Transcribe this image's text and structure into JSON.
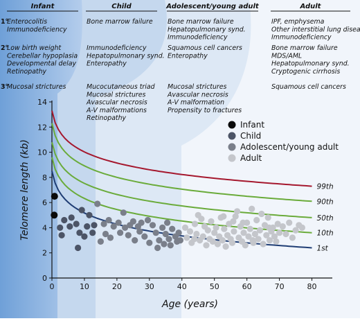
{
  "panel": {
    "columns": [
      {
        "title": "Infant",
        "rows": [
          [
            "Enterocolitis",
            "Immunodeficiency"
          ],
          [
            "Low birth weight",
            "Cerebellar hypoplasia",
            "Developmental delay",
            "Retinopathy"
          ],
          [
            "Mucosal strictures"
          ]
        ]
      },
      {
        "title": "Child",
        "rows": [
          [
            "Bone marrow failure"
          ],
          [
            "Immunodeficiency",
            "Hepatopulmonary synd.",
            "Enteropathy"
          ],
          [
            "Mucocutaneous triad",
            "Mucosal strictures",
            "Avascular necrosis",
            "A-V malformations",
            "Retinopathy"
          ]
        ]
      },
      {
        "title": "Adolescent/young adult",
        "rows": [
          [
            "Bone marrow failure",
            "Hepatopulmonary synd.",
            "Immunodeficiency"
          ],
          [
            "Squamous cell cancers",
            "Enteropathy"
          ],
          [
            "Mucosal strictures",
            "Avascular necrosis",
            "A-V malformation",
            "Propensity to fractures"
          ]
        ]
      },
      {
        "title": "Adult",
        "rows": [
          [
            "IPF, emphysema",
            "Other interstitial lung disease",
            "Immunodeficiency"
          ],
          [
            "Bone marrow failure",
            "MDS/AML",
            "Hepatopulmonary synd.",
            "Cryptogenic cirrhosis"
          ],
          [
            "Squamous cell cancers"
          ]
        ]
      }
    ],
    "rank_labels": [
      "1°",
      "2°",
      "3°"
    ]
  },
  "chart_data": {
    "type": "scatter",
    "xlabel": "Age (years)",
    "ylabel": "Telomere length (kb)",
    "xlim": [
      0,
      85
    ],
    "ylim": [
      0,
      14
    ],
    "xticks": [
      "0",
      "10",
      "20",
      "30",
      "40",
      "50",
      "60",
      "70",
      "80"
    ],
    "yticks": [
      "0",
      "2",
      "4",
      "6",
      "8",
      "10",
      "12",
      "14"
    ],
    "grid": false,
    "legend_position": "top-right",
    "percentile_curves": [
      {
        "name": "99th",
        "color": "#a5182e",
        "start": 13.3,
        "end": 7.3
      },
      {
        "name": "90th",
        "color": "#6aab3a",
        "start": 12.3,
        "end": 6.1
      },
      {
        "name": "50th",
        "color": "#6aab3a",
        "start": 10.8,
        "end": 4.8
      },
      {
        "name": "10th",
        "color": "#6aab3a",
        "start": 9.6,
        "end": 3.6
      },
      {
        "name": "1st",
        "color": "#1f3d74",
        "start": 8.5,
        "end": 2.4
      }
    ],
    "series": [
      {
        "name": "Infant",
        "color": "#0a0a0a",
        "points": [
          [
            0.8,
            6.5
          ],
          [
            0.7,
            5.0
          ]
        ]
      },
      {
        "name": "Child",
        "color": "#4c5466",
        "points": [
          [
            2.5,
            4.0
          ],
          [
            3.0,
            3.4
          ],
          [
            3.8,
            4.6
          ],
          [
            5.5,
            4.1
          ],
          [
            6.0,
            4.8
          ],
          [
            7.5,
            4.3
          ],
          [
            8.0,
            2.4
          ],
          [
            8.5,
            3.6
          ],
          [
            9.2,
            5.4
          ],
          [
            10.0,
            3.3
          ],
          [
            10.8,
            4.1
          ],
          [
            11.5,
            5.0
          ],
          [
            12.5,
            3.6
          ],
          [
            13.0,
            4.2
          ]
        ]
      },
      {
        "name": "Adolescent/young adult",
        "color": "#7a7f8a",
        "points": [
          [
            14.0,
            5.9
          ],
          [
            15.0,
            2.9
          ],
          [
            16.0,
            4.3
          ],
          [
            16.5,
            3.5
          ],
          [
            17.5,
            4.6
          ],
          [
            18.0,
            3.2
          ],
          [
            19.0,
            4.1
          ],
          [
            20.5,
            4.4
          ],
          [
            21.0,
            3.6
          ],
          [
            22.0,
            5.2
          ],
          [
            22.5,
            4.0
          ],
          [
            23.5,
            3.4
          ],
          [
            24.0,
            4.2
          ],
          [
            25.0,
            4.5
          ],
          [
            25.5,
            3.0
          ],
          [
            26.5,
            4.1
          ],
          [
            27.0,
            3.7
          ],
          [
            27.5,
            4.4
          ],
          [
            28.5,
            3.3
          ],
          [
            29.5,
            4.6
          ],
          [
            30.0,
            2.8
          ],
          [
            31.0,
            4.2
          ],
          [
            32.0,
            3.6
          ],
          [
            32.5,
            2.4
          ],
          [
            33.0,
            3.0
          ],
          [
            34.0,
            4.0
          ],
          [
            34.5,
            2.7
          ],
          [
            35.0,
            3.5
          ],
          [
            35.5,
            4.4
          ],
          [
            36.0,
            3.1
          ],
          [
            36.5,
            2.6
          ],
          [
            37.0,
            3.9
          ],
          [
            38.0,
            3.3
          ],
          [
            38.5,
            2.9
          ],
          [
            39.0,
            3.6
          ],
          [
            39.5,
            3.0
          ]
        ]
      },
      {
        "name": "Adult",
        "color": "#c4c6cb",
        "points": [
          [
            41.0,
            4.0
          ],
          [
            41.5,
            3.2
          ],
          [
            42.5,
            3.7
          ],
          [
            43.0,
            2.8
          ],
          [
            44.0,
            4.3
          ],
          [
            44.5,
            3.5
          ],
          [
            45.5,
            3.0
          ],
          [
            46.0,
            4.7
          ],
          [
            46.5,
            3.3
          ],
          [
            47.0,
            4.1
          ],
          [
            47.5,
            2.6
          ],
          [
            48.0,
            3.8
          ],
          [
            48.5,
            3.1
          ],
          [
            49.0,
            4.5
          ],
          [
            49.5,
            2.9
          ],
          [
            50.0,
            3.6
          ],
          [
            50.5,
            4.0
          ],
          [
            51.0,
            2.7
          ],
          [
            51.5,
            3.3
          ],
          [
            52.0,
            4.8
          ],
          [
            52.5,
            3.0
          ],
          [
            53.0,
            3.9
          ],
          [
            53.5,
            2.5
          ],
          [
            54.0,
            3.4
          ],
          [
            54.5,
            4.3
          ],
          [
            55.0,
            3.1
          ],
          [
            55.5,
            2.8
          ],
          [
            56.0,
            3.7
          ],
          [
            56.5,
            4.9
          ],
          [
            57.0,
            5.3
          ],
          [
            57.5,
            3.2
          ],
          [
            58.0,
            4.1
          ],
          [
            58.5,
            2.9
          ],
          [
            59.0,
            3.6
          ],
          [
            59.5,
            2.6
          ],
          [
            60.0,
            4.4
          ],
          [
            60.5,
            3.3
          ],
          [
            61.0,
            3.9
          ],
          [
            61.5,
            5.5
          ],
          [
            62.0,
            2.8
          ],
          [
            62.5,
            3.5
          ],
          [
            63.0,
            4.6
          ],
          [
            63.5,
            3.1
          ],
          [
            64.0,
            3.8
          ],
          [
            64.5,
            5.1
          ],
          [
            65.0,
            2.7
          ],
          [
            65.5,
            4.2
          ],
          [
            66.0,
            3.4
          ],
          [
            66.5,
            4.8
          ],
          [
            67.0,
            3.0
          ],
          [
            67.5,
            3.7
          ],
          [
            68.0,
            4.0
          ],
          [
            68.5,
            3.3
          ],
          [
            69.0,
            2.9
          ],
          [
            69.5,
            4.3
          ],
          [
            70.0,
            3.6
          ],
          [
            71.0,
            4.1
          ],
          [
            72.0,
            3.5
          ],
          [
            73.0,
            4.4
          ],
          [
            74.0,
            3.2
          ],
          [
            75.0,
            3.8
          ],
          [
            76.0,
            4.2
          ],
          [
            77.0,
            4.0
          ],
          [
            45.0,
            5.0
          ],
          [
            52.8,
            4.9
          ],
          [
            58.8,
            4.4
          ],
          [
            43.8,
            3.1
          ],
          [
            61.8,
            3.0
          ],
          [
            55.8,
            4.5
          ],
          [
            66.8,
            4.0
          ]
        ]
      }
    ]
  }
}
